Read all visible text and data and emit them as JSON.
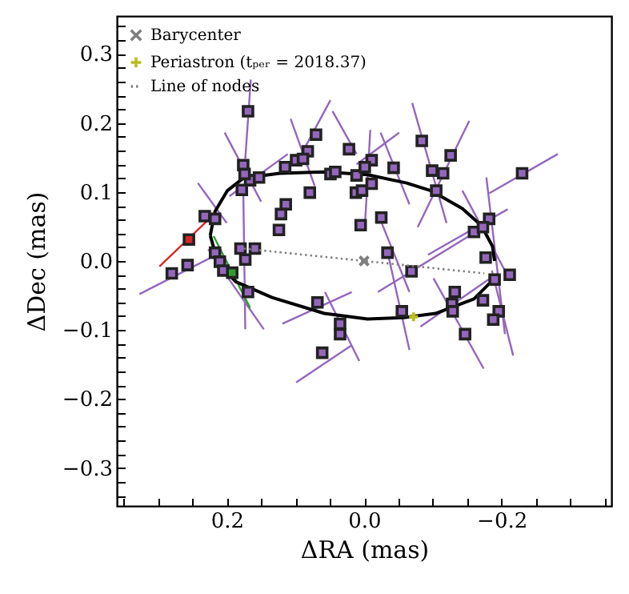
{
  "chart_data": {
    "type": "scatter",
    "xlabel": "ΔRA (mas)",
    "ylabel": "ΔDec (mas)",
    "xlim": [
      0.36,
      -0.36
    ],
    "ylim": [
      -0.355,
      0.355
    ],
    "xticks": [
      {
        "value": 0.35,
        "label": null
      },
      {
        "value": 0.3,
        "label": null
      },
      {
        "value": 0.25,
        "label": null
      },
      0.2,
      {
        "value": 0.15,
        "label": null
      },
      {
        "value": 0.1,
        "label": null
      },
      {
        "value": 0.05,
        "label": null
      },
      {
        "value": 0,
        "label": "0.0"
      },
      {
        "value": -0.05,
        "label": null
      },
      {
        "value": -0.1,
        "label": null
      },
      {
        "value": -0.15,
        "label": null
      },
      {
        "value": -0.2,
        "label": "−0.2"
      },
      {
        "value": -0.25,
        "label": null
      },
      {
        "value": -0.3,
        "label": null
      },
      {
        "value": -0.35,
        "label": null
      }
    ],
    "yticks": [
      {
        "value": -0.34,
        "label": null
      },
      {
        "value": -0.32,
        "label": null
      },
      {
        "value": -0.3,
        "label": "−0.3"
      },
      {
        "value": -0.28,
        "label": null
      },
      {
        "value": -0.26,
        "label": null
      },
      {
        "value": -0.24,
        "label": null
      },
      {
        "value": -0.22,
        "label": null
      },
      {
        "value": -0.2,
        "label": "−0.2"
      },
      {
        "value": -0.18,
        "label": null
      },
      {
        "value": -0.16,
        "label": null
      },
      {
        "value": -0.14,
        "label": null
      },
      {
        "value": -0.12,
        "label": null
      },
      {
        "value": -0.1,
        "label": "−0.1"
      },
      {
        "value": -0.08,
        "label": null
      },
      {
        "value": -0.06,
        "label": null
      },
      {
        "value": -0.04,
        "label": null
      },
      {
        "value": -0.02,
        "label": null
      },
      {
        "value": 0,
        "label": "0.0"
      },
      {
        "value": 0.02,
        "label": null
      },
      {
        "value": 0.04,
        "label": null
      },
      {
        "value": 0.06,
        "label": null
      },
      {
        "value": 0.08,
        "label": null
      },
      0.1,
      {
        "value": 0.12,
        "label": null
      },
      {
        "value": 0.14,
        "label": null
      },
      {
        "value": 0.16,
        "label": null
      },
      {
        "value": 0.18,
        "label": null
      },
      0.2,
      {
        "value": 0.22,
        "label": null
      },
      {
        "value": 0.24,
        "label": null
      },
      {
        "value": 0.26,
        "label": null
      },
      {
        "value": 0.28,
        "label": null
      },
      0.3,
      {
        "value": 0.32,
        "label": null
      },
      {
        "value": 0.34,
        "label": null
      }
    ],
    "legend": "top left",
    "series": [
      {
        "type": "line",
        "color": "#9467bd",
        "x": [
          0.165,
          0.173
        ],
        "values": [
          0.263,
          0.148
        ]
      },
      {
        "type": "line",
        "color": "#9467bd",
        "x": [
          0.049,
          0.095
        ],
        "values": [
          0.233,
          0.148
        ]
      },
      {
        "type": "line",
        "color": "#9467bd",
        "x": [
          0.203,
          0.15
        ],
        "values": [
          0.186,
          0.086
        ]
      },
      {
        "type": "line",
        "color": "#9467bd",
        "x": [
          0.107,
          0.072
        ],
        "values": [
          0.206,
          0.109
        ]
      },
      {
        "type": "line",
        "color": "#9467bd",
        "x": [
          0.046,
          0.011
        ],
        "values": [
          0.217,
          0.155
        ]
      },
      {
        "type": "line",
        "color": "#9467bd",
        "x": [
          0.111,
          0.196
        ],
        "values": [
          0.155,
          0.094
        ]
      },
      {
        "type": "line",
        "color": "#9467bd",
        "x": [
          0.242,
          0.2
        ],
        "values": [
          0.113,
          0.055
        ]
      },
      {
        "type": "line",
        "color": "#9467bd",
        "x": [
          0.327,
          0.215
        ],
        "values": [
          -0.048,
          0.009
        ]
      },
      {
        "type": "line",
        "color": "#9467bd",
        "x": [
          0.176,
          0.173
        ],
        "values": [
          0.109,
          -0.099
        ]
      },
      {
        "type": "line",
        "color": "#9467bd",
        "x": [
          0.119,
          0.018
        ],
        "values": [
          -0.091,
          -0.045
        ]
      },
      {
        "type": "line",
        "color": "#9467bd",
        "x": [
          0.099,
          0.018
        ],
        "values": [
          -0.176,
          -0.122
        ]
      },
      {
        "type": "line",
        "color": "#9467bd",
        "x": [
          0.057,
          0.007
        ],
        "values": [
          -0.045,
          -0.145
        ]
      },
      {
        "type": "line",
        "color": "#9467bd",
        "x": [
          0.227,
          0.146
        ],
        "values": [
          0.017,
          -0.099
        ]
      },
      {
        "type": "line",
        "color": "#9467bd",
        "x": [
          -0.07,
          -0.12
        ],
        "values": [
          0.229,
          0.055
        ]
      },
      {
        "type": "line",
        "color": "#9467bd",
        "x": [
          -0.153,
          -0.078
        ],
        "values": [
          0.203,
          0.049
        ]
      },
      {
        "type": "line",
        "color": "#9467bd",
        "x": [
          -0.282,
          -0.182
        ],
        "values": [
          0.155,
          0.098
        ]
      },
      {
        "type": "line",
        "color": "#9467bd",
        "x": [
          -0.143,
          -0.213
        ],
        "values": [
          0.102,
          -0.029
        ]
      },
      {
        "type": "line",
        "color": "#9467bd",
        "x": [
          -0.178,
          -0.205
        ],
        "values": [
          0.121,
          -0.106
        ]
      },
      {
        "type": "line",
        "color": "#9467bd",
        "x": [
          -0.209,
          -0.093
        ],
        "values": [
          0.075,
          0.009
        ]
      },
      {
        "type": "line",
        "color": "#9467bd",
        "x": [
          -0.159,
          -0.02
        ],
        "values": [
          0.04,
          -0.045
        ]
      },
      {
        "type": "line",
        "color": "#9467bd",
        "x": [
          -0.024,
          -0.066
        ],
        "values": [
          0.059,
          -0.045
        ]
      },
      {
        "type": "line",
        "color": "#9467bd",
        "x": [
          -0.035,
          -0.066
        ],
        "values": [
          0.009,
          -0.129
        ]
      },
      {
        "type": "line",
        "color": "#9467bd",
        "x": [
          -0.009,
          -0.001
        ],
        "values": [
          0.19,
          0.048
        ]
      },
      {
        "type": "line",
        "color": "#9467bd",
        "x": [
          -0.051,
          0.011
        ],
        "values": [
          0.186,
          0.14
        ]
      },
      {
        "type": "line",
        "color": "#9467bd",
        "x": [
          -0.024,
          -0.066
        ],
        "values": [
          0.186,
          0.082
        ]
      },
      {
        "type": "line",
        "color": "#9467bd",
        "x": [
          -0.186,
          -0.217
        ],
        "values": [
          -0.014,
          -0.137
        ]
      },
      {
        "type": "line",
        "color": "#9467bd",
        "x": [
          -0.101,
          -0.174
        ],
        "values": [
          -0.025,
          -0.156
        ]
      },
      {
        "type": "line",
        "color": "#9467bd",
        "x": [
          -0.082,
          -0.194
        ],
        "values": [
          -0.095,
          -0.018
        ]
      },
      {
        "type": "line",
        "color": "#d62728",
        "line_style": "solid",
        "x": [
          0.298,
          0.215
        ],
        "values": [
          -0.008,
          0.071
        ]
      },
      {
        "type": "line",
        "color": "#2ca02c",
        "line_style": "solid",
        "x": [
          0.219,
          0.166
        ],
        "values": [
          0.036,
          -0.068
        ]
      },
      {
        "type": "line",
        "color": "#000000",
        "line_style": "solid",
        "x": [
          0.224,
          0.217,
          0.199,
          0.176,
          0.123,
          0.058,
          -0.005,
          -0.062,
          -0.097,
          -0.143,
          -0.171,
          -0.187,
          -0.19
        ],
        "values": [
          0.037,
          0.072,
          0.102,
          0.12,
          0.127,
          0.129,
          0.125,
          0.113,
          0.102,
          0.076,
          0.051,
          0.021,
          0.0
        ]
      },
      {
        "type": "line",
        "color": "#000000",
        "line_style": "solid",
        "x": [
          -0.185,
          -0.16,
          -0.104,
          -0.058,
          -0.005,
          0.058,
          0.134,
          0.187,
          0.213,
          0.224
        ],
        "values": [
          -0.03,
          -0.055,
          -0.076,
          -0.082,
          -0.084,
          -0.076,
          -0.053,
          -0.03,
          -0.002,
          0.037
        ]
      },
      {
        "type": "scatter",
        "marker": "square",
        "color": "#9467bd",
        "x": [
          0.169,
          0.07,
          0.082,
          0.022,
          0.115,
          0.099,
          0.089,
          0.176,
          0.166,
          0.153,
          0.174,
          0.178,
          0.049,
          0.042,
          0.011,
          0.079,
          0.012,
          0.003,
          0.114,
          0.121,
          0.005,
          0.124,
          0.232,
          0.217,
          0.18,
          0.159,
          0.217,
          0.173,
          0.21,
          0.205,
          0.257,
          0.28,
          0.169,
          0.068,
          0.035,
          0.035,
          0.061,
          -0.011,
          -0.001,
          -0.011,
          -0.043,
          -0.084,
          -0.126,
          -0.099,
          -0.115,
          -0.105,
          -0.23,
          -0.025,
          -0.034,
          -0.182,
          -0.16,
          -0.173,
          -0.177,
          -0.069,
          -0.19,
          -0.212,
          -0.055,
          -0.132,
          -0.128,
          -0.129,
          -0.173,
          -0.196,
          -0.188,
          -0.147
        ],
        "values": [
          0.217,
          0.183,
          0.159,
          0.162,
          0.136,
          0.146,
          0.148,
          0.139,
          0.117,
          0.121,
          0.126,
          0.103,
          0.126,
          0.129,
          0.124,
          0.099,
          0.099,
          0.102,
          0.082,
          0.068,
          0.052,
          0.045,
          0.065,
          0.061,
          0.018,
          0.018,
          0.012,
          0.002,
          -0.001,
          -0.014,
          -0.006,
          -0.018,
          -0.045,
          -0.06,
          -0.091,
          -0.106,
          -0.133,
          0.146,
          0.136,
          0.112,
          0.135,
          0.174,
          0.153,
          0.131,
          0.127,
          0.102,
          0.127,
          0.063,
          0.012,
          0.061,
          0.042,
          0.049,
          0.005,
          -0.015,
          -0.027,
          -0.02,
          -0.073,
          -0.045,
          -0.062,
          -0.073,
          -0.057,
          -0.073,
          -0.085,
          -0.106
        ]
      },
      {
        "type": "scatter",
        "marker": "square",
        "color": "#d62728",
        "x": [
          0.255
        ],
        "values": [
          0.031
        ]
      },
      {
        "type": "scatter",
        "marker": "square",
        "color": "#2ca02c",
        "x": [
          0.192
        ],
        "values": [
          -0.017
        ]
      },
      {
        "type": "scatter",
        "name": "Barycenter",
        "marker": "x",
        "color": "#7f7f7f",
        "x": [
          0
        ],
        "values": [
          0
        ]
      },
      {
        "type": "scatter",
        "name": "Periastron (tₚₑᵣ = 2018.37)",
        "marker": "cross",
        "color": "#bcbd22",
        "x": [
          -0.072
        ],
        "values": [
          -0.081
        ]
      },
      {
        "type": "line",
        "name": "Line of nodes",
        "color": "#808080",
        "line_style": "dotted",
        "x": [
          0.175,
          -0.175
        ],
        "values": [
          0.018,
          -0.018
        ]
      }
    ]
  }
}
